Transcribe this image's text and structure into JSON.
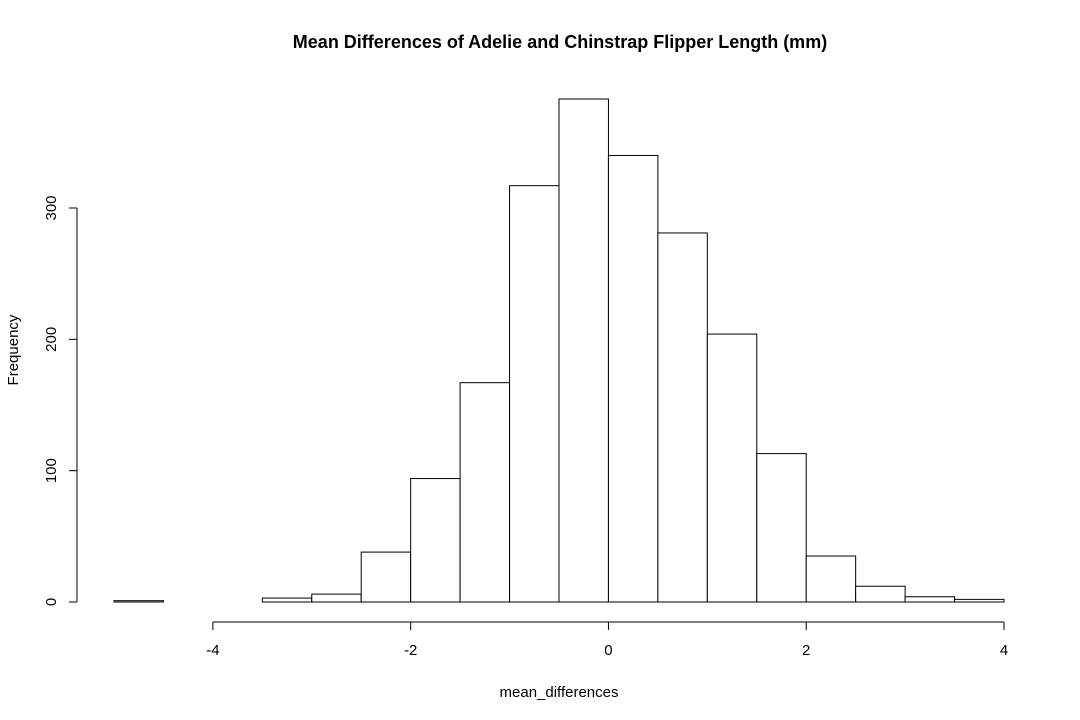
{
  "chart_data": {
    "type": "bar",
    "title": "Mean Differences of Adelie and Chinstrap Flipper Length (mm)",
    "xlabel": "mean_differences",
    "ylabel": "Frequency",
    "xlim": [
      -5,
      4
    ],
    "ylim": [
      0,
      383
    ],
    "bin_width": 0.5,
    "bins": [
      {
        "x0": -5.0,
        "x1": -4.5,
        "count": 1
      },
      {
        "x0": -4.5,
        "x1": -4.0,
        "count": 0
      },
      {
        "x0": -4.0,
        "x1": -3.5,
        "count": 0
      },
      {
        "x0": -3.5,
        "x1": -3.0,
        "count": 3
      },
      {
        "x0": -3.0,
        "x1": -2.5,
        "count": 6
      },
      {
        "x0": -2.5,
        "x1": -2.0,
        "count": 38
      },
      {
        "x0": -2.0,
        "x1": -1.5,
        "count": 94
      },
      {
        "x0": -1.5,
        "x1": -1.0,
        "count": 167
      },
      {
        "x0": -1.0,
        "x1": -0.5,
        "count": 317
      },
      {
        "x0": -0.5,
        "x1": 0.0,
        "count": 383
      },
      {
        "x0": 0.0,
        "x1": 0.5,
        "count": 340
      },
      {
        "x0": 0.5,
        "x1": 1.0,
        "count": 281
      },
      {
        "x0": 1.0,
        "x1": 1.5,
        "count": 204
      },
      {
        "x0": 1.5,
        "x1": 2.0,
        "count": 113
      },
      {
        "x0": 2.0,
        "x1": 2.5,
        "count": 35
      },
      {
        "x0": 2.5,
        "x1": 3.0,
        "count": 12
      },
      {
        "x0": 3.0,
        "x1": 3.5,
        "count": 4
      },
      {
        "x0": 3.5,
        "x1": 4.0,
        "count": 2
      }
    ],
    "x_ticks": [
      -4,
      -2,
      0,
      2,
      4
    ],
    "x_tick_labels": [
      "-4",
      "-2",
      "0",
      "2",
      "4"
    ],
    "y_ticks": [
      0,
      100,
      200,
      300
    ],
    "y_tick_labels": [
      "0",
      "100",
      "200",
      "300"
    ],
    "grid": false,
    "bar_fill": "#ffffff",
    "bar_stroke": "#000000"
  }
}
